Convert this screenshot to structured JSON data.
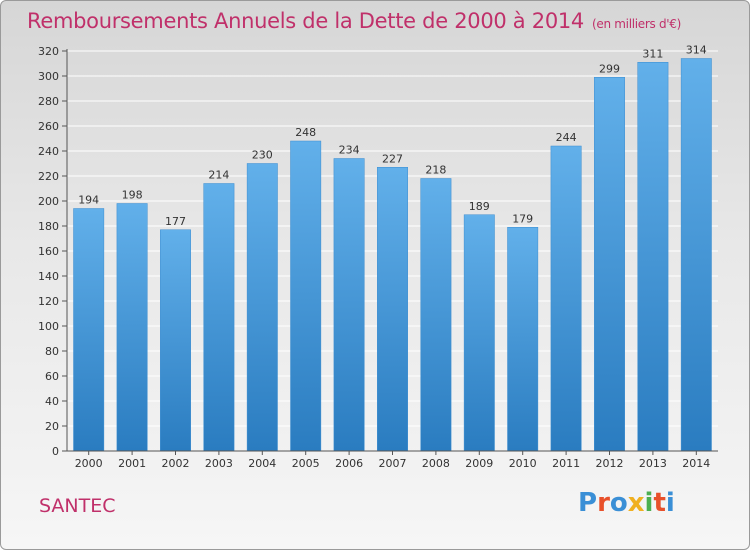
{
  "header": {
    "title": "Remboursements Annuels de la Dette de 2000 à 2014",
    "subtitle": "(en milliers d'€)"
  },
  "footer": {
    "commune": "SANTEC",
    "logo_text": "Proxiti"
  },
  "colors": {
    "title": "#c0306a",
    "bar_top": "#62b0ea",
    "bar_bottom": "#2a7cc0",
    "grid": "#ffffff",
    "logo": [
      "#3a8fd6",
      "#e8502a",
      "#3a8fd6",
      "#f0b020",
      "#4caf50",
      "#e8502a",
      "#3a8fd6"
    ]
  },
  "chart_data": {
    "type": "bar",
    "title": "Remboursements Annuels de la Dette de 2000 à 2014",
    "subtitle": "(en milliers d'€)",
    "categories": [
      "2000",
      "2001",
      "2002",
      "2003",
      "2004",
      "2005",
      "2006",
      "2007",
      "2008",
      "2009",
      "2010",
      "2011",
      "2012",
      "2013",
      "2014"
    ],
    "values": [
      194,
      198,
      177,
      214,
      230,
      248,
      234,
      227,
      218,
      189,
      179,
      244,
      299,
      311,
      314
    ],
    "ylim": [
      0,
      320
    ],
    "yticks": [
      0,
      20,
      40,
      60,
      80,
      100,
      120,
      140,
      160,
      180,
      200,
      220,
      240,
      260,
      280,
      300,
      320
    ],
    "grid": true,
    "data_labels": true
  }
}
